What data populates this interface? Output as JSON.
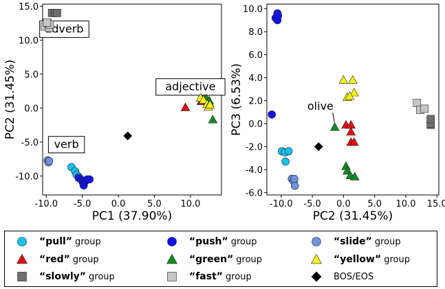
{
  "chart_data": [
    {
      "type": "scatter",
      "xlabel": "PC1 (37.90%)",
      "ylabel": "PC2 (31.45%)",
      "xlim": [
        -10.5,
        14.3
      ],
      "ylim": [
        -12.8,
        15.3
      ],
      "xticks": [
        -10,
        -5,
        0,
        5,
        10
      ],
      "yticks": [
        -10,
        -5,
        0,
        5,
        10,
        15
      ],
      "xtick_labels": [
        "-10.0",
        "-5.0",
        "0.0",
        "5.0",
        "10.0"
      ],
      "ytick_labels": [
        "-10.0",
        "-5.0",
        "0.0",
        "5.0",
        "10.0",
        "15.0"
      ],
      "annotations": [
        {
          "text": "adverb",
          "x": -7.5,
          "y": 11.1
        },
        {
          "text": "adjective",
          "x": 10.0,
          "y": 2.6
        },
        {
          "text": "verb",
          "x": -7.2,
          "y": -5.9
        }
      ],
      "series": [
        {
          "key": "slowly",
          "points": [
            [
              -9.2,
              14.0
            ],
            [
              -8.8,
              14.0
            ],
            [
              -8.5,
              14.0
            ]
          ]
        },
        {
          "key": "fast",
          "points": [
            [
              -10.2,
              12.0
            ],
            [
              -9.8,
              12.5
            ],
            [
              -9.6,
              11.8
            ],
            [
              -9.5,
              12.3
            ],
            [
              -9.9,
              12.6
            ]
          ]
        },
        {
          "key": "red",
          "points": [
            [
              9.3,
              0.1
            ],
            [
              11.5,
              1.0
            ],
            [
              12.0,
              1.2
            ],
            [
              12.4,
              1.0
            ],
            [
              12.6,
              0.8
            ]
          ]
        },
        {
          "key": "green",
          "points": [
            [
              11.7,
              1.3
            ],
            [
              12.2,
              1.4
            ],
            [
              12.6,
              1.1
            ],
            [
              13.1,
              -1.7
            ]
          ]
        },
        {
          "key": "yellow",
          "points": [
            [
              11.4,
              1.5
            ],
            [
              11.8,
              1.2
            ],
            [
              12.3,
              0.6
            ],
            [
              12.5,
              0.2
            ],
            [
              12.7,
              0.5
            ]
          ]
        },
        {
          "key": "bos",
          "points": [
            [
              1.3,
              -4.1
            ]
          ]
        },
        {
          "key": "slide",
          "points": [
            [
              -9.8,
              -7.7
            ],
            [
              -9.7,
              -8.0
            ],
            [
              -9.6,
              -7.8
            ]
          ]
        },
        {
          "key": "pull",
          "points": [
            [
              -6.5,
              -8.7
            ],
            [
              -6.0,
              -9.3
            ],
            [
              -5.8,
              -9.8
            ],
            [
              -5.5,
              -10.1
            ]
          ]
        },
        {
          "key": "push",
          "points": [
            [
              -5.5,
              -10.3
            ],
            [
              -5.1,
              -10.6
            ],
            [
              -4.9,
              -11.0
            ],
            [
              -4.8,
              -11.4
            ],
            [
              -4.6,
              -10.8
            ],
            [
              -4.3,
              -10.5
            ],
            [
              -4.0,
              -10.5
            ]
          ]
        }
      ]
    },
    {
      "type": "scatter",
      "xlabel": "PC2 (31.45%)",
      "ylabel": "PC3 (6.53%)",
      "xlim": [
        -12.3,
        15.3
      ],
      "ylim": [
        -6.2,
        10.4
      ],
      "xticks": [
        -10,
        -5,
        0,
        5,
        10,
        15
      ],
      "yticks": [
        -6,
        -4,
        -2,
        0,
        2,
        4,
        6,
        8,
        10
      ],
      "xtick_labels": [
        "-10.0",
        "-5.0",
        "0.0",
        "5.0",
        "10.0",
        "15.0"
      ],
      "ytick_labels": [
        "-6.0",
        "-4.0",
        "-2.0",
        "0.0",
        "2.0",
        "4.0",
        "6.0",
        "8.0",
        "10.0"
      ],
      "annotations": [
        {
          "text": "olive",
          "x": -3.7,
          "y": 1.2,
          "arrow_to": [
            -1.4,
            -0.1
          ]
        }
      ],
      "series": [
        {
          "key": "push",
          "points": [
            [
              -10.9,
              9.2
            ],
            [
              -10.6,
              9.6
            ],
            [
              -10.6,
              9.0
            ],
            [
              -10.5,
              9.4
            ],
            [
              -11.5,
              0.8
            ]
          ]
        },
        {
          "key": "pull",
          "points": [
            [
              -9.9,
              -2.4
            ],
            [
              -9.4,
              -2.5
            ],
            [
              -8.8,
              -2.4
            ],
            [
              -9.3,
              -3.3
            ]
          ]
        },
        {
          "key": "slide",
          "points": [
            [
              -8.3,
              -4.8
            ],
            [
              -8.0,
              -5.0
            ],
            [
              -7.8,
              -5.4
            ],
            [
              -7.9,
              -4.8
            ]
          ]
        },
        {
          "key": "bos",
          "points": [
            [
              -4.0,
              -2.0
            ]
          ]
        },
        {
          "key": "yellow",
          "points": [
            [
              0.0,
              3.8
            ],
            [
              1.5,
              3.8
            ],
            [
              1.7,
              2.7
            ],
            [
              0.6,
              2.3
            ],
            [
              1.0,
              2.4
            ]
          ]
        },
        {
          "key": "red",
          "points": [
            [
              0.4,
              -0.1
            ],
            [
              1.2,
              -0.1
            ],
            [
              1.2,
              -0.7
            ],
            [
              1.2,
              -1.6
            ],
            [
              1.7,
              -1.6
            ]
          ]
        },
        {
          "key": "green",
          "points": [
            [
              -1.4,
              -0.3
            ],
            [
              0.4,
              -3.7
            ],
            [
              0.6,
              -4.1
            ],
            [
              1.1,
              -4.5
            ],
            [
              1.8,
              -4.6
            ]
          ]
        },
        {
          "key": "fast",
          "points": [
            [
              11.8,
              1.8
            ],
            [
              12.3,
              1.2
            ],
            [
              13.0,
              1.3
            ]
          ]
        },
        {
          "key": "slowly",
          "points": [
            [
              14.0,
              0.3
            ],
            [
              14.0,
              -0.1
            ],
            [
              14.0,
              0.0
            ],
            [
              14.0,
              0.4
            ]
          ]
        }
      ]
    }
  ],
  "legend": [
    {
      "key": "pull",
      "name": "“pull”",
      "suffix": "group",
      "shape": "circle",
      "fill": "#18c0ee"
    },
    {
      "key": "push",
      "name": "“push”",
      "suffix": "group",
      "shape": "circle",
      "fill": "#1212ee"
    },
    {
      "key": "slide",
      "name": "“slide”",
      "suffix": "group",
      "shape": "circle",
      "fill": "#6e93e0"
    },
    {
      "key": "red",
      "name": "“red”",
      "suffix": "group",
      "shape": "triangle",
      "fill": "#e01010"
    },
    {
      "key": "green",
      "name": "“green”",
      "suffix": "group",
      "shape": "triangle",
      "fill": "#118822"
    },
    {
      "key": "yellow",
      "name": "“yellow”",
      "suffix": "group",
      "shape": "triangle",
      "fill": "#f4f41a"
    },
    {
      "key": "slowly",
      "name": "“slowly”",
      "suffix": "group",
      "shape": "square",
      "fill": "#707070"
    },
    {
      "key": "fast",
      "name": "“fast”",
      "suffix": "group",
      "shape": "square",
      "fill": "#c6c6c6"
    },
    {
      "key": "bos",
      "name": "",
      "suffix": "BOS/EOS",
      "shape": "diamond",
      "fill": "#000000"
    }
  ]
}
